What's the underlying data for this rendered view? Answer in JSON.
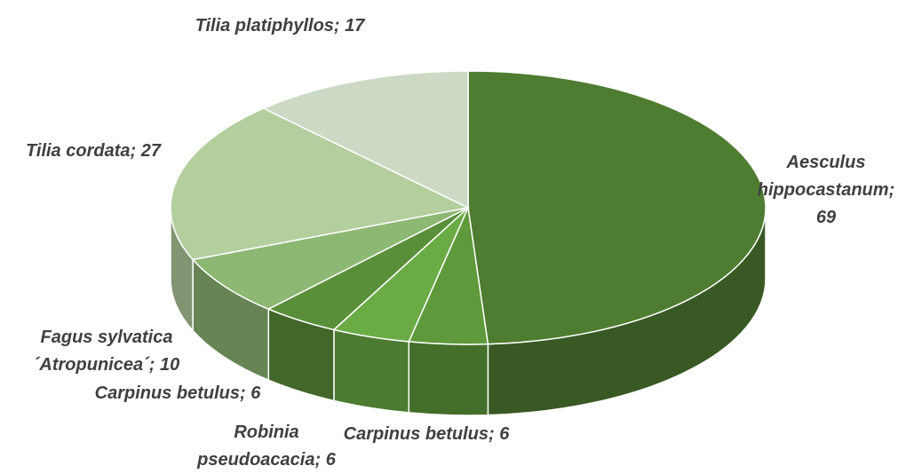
{
  "chart_data": {
    "type": "pie3d",
    "label_separator": ";",
    "categories": [
      "Aesculus hippocastanum",
      "Carpinus betulus",
      "Robinia pseudoacacia",
      "Carpinus betulus",
      "Fagus sylvatica ´Atropunicea´",
      "Tilia cordata",
      "Tilia platiphyllos"
    ],
    "values": [
      69,
      6,
      6,
      6,
      10,
      27,
      17
    ],
    "colors": [
      "#4e7c30",
      "#5e9a3c",
      "#6aab46",
      "#5a8f3a",
      "#8db874",
      "#b3cf9e",
      "#cdd9c4"
    ]
  }
}
